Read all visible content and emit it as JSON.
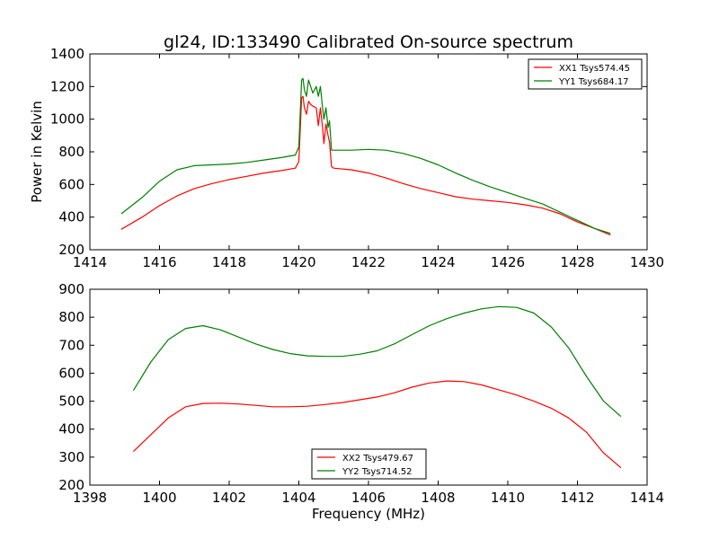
{
  "figure": {
    "title": "gl24, ID:133490 Calibrated On-source spectrum",
    "ylabel": "Power in Kelvin",
    "xlabel": "Frequency (MHz)"
  },
  "colors": {
    "red": "#ff0000",
    "green": "#008000"
  },
  "chart_data": [
    {
      "type": "line",
      "xlim": [
        1414,
        1430
      ],
      "ylim": [
        200,
        1400
      ],
      "xticks": [
        1414,
        1416,
        1418,
        1420,
        1422,
        1424,
        1426,
        1428,
        1430
      ],
      "yticks": [
        200,
        400,
        600,
        800,
        1000,
        1200,
        1400
      ],
      "legend_position": "top-right",
      "series": [
        {
          "name": "XX1 Tsys574.45",
          "color": "#ff0000",
          "x": [
            1414.9,
            1415.5,
            1416,
            1416.5,
            1417,
            1417.5,
            1418,
            1418.5,
            1419,
            1419.5,
            1419.9,
            1420.0,
            1420.08,
            1420.12,
            1420.16,
            1420.22,
            1420.28,
            1420.34,
            1420.4,
            1420.5,
            1420.56,
            1420.62,
            1420.68,
            1420.72,
            1420.78,
            1420.84,
            1420.88,
            1420.94,
            1421.0,
            1421.5,
            1422,
            1422.5,
            1423,
            1423.5,
            1424,
            1424.5,
            1425,
            1425.5,
            1426,
            1426.5,
            1427,
            1427.5,
            1428,
            1428.5,
            1428.95
          ],
          "y": [
            325,
            400,
            470,
            530,
            575,
            605,
            630,
            650,
            670,
            685,
            700,
            740,
            1130,
            1140,
            1070,
            1030,
            1110,
            1090,
            1080,
            1070,
            960,
            1070,
            950,
            850,
            970,
            900,
            860,
            710,
            700,
            690,
            670,
            640,
            605,
            575,
            550,
            525,
            510,
            500,
            490,
            475,
            455,
            420,
            370,
            330,
            290
          ]
        },
        {
          "name": "YY1 Tsys684.17",
          "color": "#008000",
          "x": [
            1414.9,
            1415.5,
            1416,
            1416.5,
            1417,
            1417.5,
            1418,
            1418.5,
            1419,
            1419.5,
            1419.9,
            1420.0,
            1420.08,
            1420.12,
            1420.16,
            1420.22,
            1420.28,
            1420.34,
            1420.4,
            1420.5,
            1420.56,
            1420.62,
            1420.68,
            1420.72,
            1420.78,
            1420.84,
            1420.88,
            1420.94,
            1421.0,
            1421.5,
            1422,
            1422.5,
            1423,
            1423.5,
            1424,
            1424.5,
            1425,
            1425.5,
            1426,
            1426.5,
            1427,
            1427.5,
            1428,
            1428.5,
            1428.95
          ],
          "y": [
            420,
            520,
            620,
            690,
            715,
            720,
            725,
            735,
            750,
            765,
            780,
            830,
            1240,
            1250,
            1180,
            1140,
            1240,
            1200,
            1160,
            1200,
            1140,
            1200,
            1070,
            1000,
            1070,
            950,
            990,
            810,
            810,
            810,
            815,
            810,
            790,
            760,
            720,
            670,
            625,
            585,
            550,
            515,
            480,
            430,
            380,
            330,
            300
          ]
        }
      ]
    },
    {
      "type": "line",
      "xlabel": "Frequency (MHz)",
      "xlim": [
        1398,
        1414
      ],
      "ylim": [
        200,
        900
      ],
      "xticks": [
        1398,
        1400,
        1402,
        1404,
        1406,
        1408,
        1410,
        1412,
        1414
      ],
      "yticks": [
        200,
        300,
        400,
        500,
        600,
        700,
        800,
        900
      ],
      "legend_position": "bottom-center",
      "series": [
        {
          "name": "XX2 Tsys479.67",
          "color": "#ff0000",
          "x": [
            1399.25,
            1399.75,
            1400.25,
            1400.75,
            1401.25,
            1401.75,
            1402.25,
            1402.75,
            1403.25,
            1403.75,
            1404.25,
            1404.75,
            1405.25,
            1405.75,
            1406.25,
            1406.75,
            1407.25,
            1407.75,
            1408.25,
            1408.75,
            1409.25,
            1409.75,
            1410.25,
            1410.75,
            1411.25,
            1411.75,
            1412.25,
            1412.75,
            1413.25
          ],
          "y": [
            320,
            380,
            440,
            480,
            492,
            493,
            490,
            485,
            480,
            480,
            482,
            488,
            495,
            505,
            515,
            530,
            550,
            565,
            572,
            570,
            558,
            540,
            522,
            500,
            475,
            440,
            390,
            315,
            262
          ]
        },
        {
          "name": "YY2 Tsys714.52",
          "color": "#008000",
          "x": [
            1399.25,
            1399.75,
            1400.25,
            1400.75,
            1401.25,
            1401.75,
            1402.25,
            1402.75,
            1403.25,
            1403.75,
            1404.25,
            1404.75,
            1405.25,
            1405.75,
            1406.25,
            1406.75,
            1407.25,
            1407.75,
            1408.25,
            1408.75,
            1409.25,
            1409.75,
            1410.25,
            1410.75,
            1411.25,
            1411.75,
            1412.25,
            1412.75,
            1413.25
          ],
          "y": [
            538,
            640,
            720,
            760,
            770,
            755,
            730,
            705,
            685,
            670,
            662,
            660,
            660,
            668,
            680,
            705,
            738,
            770,
            795,
            815,
            830,
            838,
            835,
            815,
            765,
            690,
            590,
            500,
            445
          ]
        }
      ]
    }
  ]
}
